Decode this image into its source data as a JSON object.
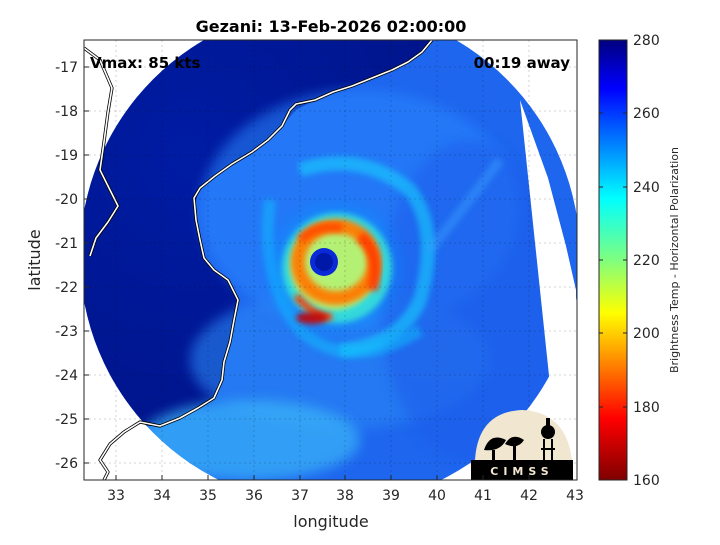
{
  "figure": {
    "title": "Gezani: 13-Feb-2026 02:00:00",
    "vmax_label": "Vmax: 85 kts",
    "time_label": "00:19 away"
  },
  "axes": {
    "xlabel": "longitude",
    "ylabel": "latitude",
    "xlim": [
      32.3,
      43.0
    ],
    "ylim": [
      -26.4,
      -16.4
    ],
    "xticks": [
      "33",
      "34",
      "35",
      "36",
      "37",
      "38",
      "39",
      "40",
      "41",
      "42",
      "43"
    ],
    "yticks": [
      "-17",
      "-18",
      "-19",
      "-20",
      "-21",
      "-22",
      "-23",
      "-24",
      "-25",
      "-26"
    ],
    "grid": true
  },
  "colorbar": {
    "label": "Brightness Temp - Horizontal Polarization",
    "ticks": [
      "280",
      "260",
      "240",
      "220",
      "200",
      "180",
      "160"
    ],
    "range": [
      160,
      280
    ],
    "colormap": "jet"
  },
  "logo": {
    "text": "CIMSS"
  },
  "storm": {
    "name": "Gezani",
    "eye_center": [
      37.5,
      -21.6
    ]
  },
  "colors": {
    "background_ocean": "#2060e8",
    "land_outside": "#00189a",
    "coastline": "#ffffff",
    "frame": "#000000",
    "logo_bg": "#f1e6cf"
  }
}
